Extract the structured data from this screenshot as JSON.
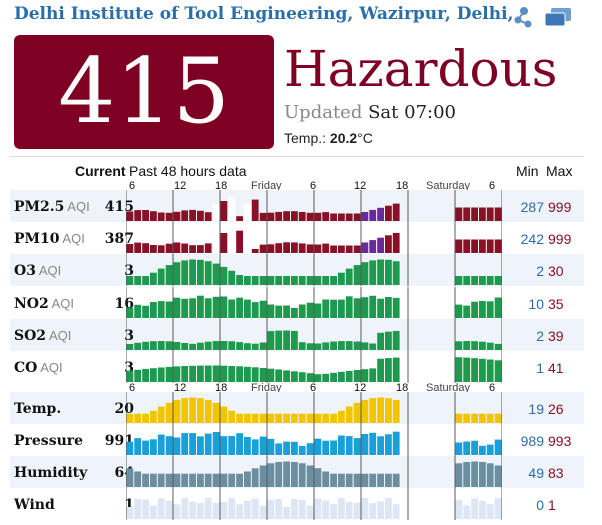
{
  "header": {
    "station": "Delhi Institute of Tool Engineering, Wazirpur, Delhi,",
    "share_icon": "share-icon",
    "window_icon": "windows-icon"
  },
  "aqi": {
    "value": "415",
    "status": "Hazardous",
    "updated_label": "Updated",
    "updated_time": "Sat 07:00",
    "temp_label": "Temp.:",
    "temp_value": "20.2",
    "temp_unit": "°C",
    "color": "#7e0023"
  },
  "table": {
    "current_label": "Current",
    "history_label": "Past 48 hours data",
    "min_label": "Min",
    "max_label": "Max",
    "axis_hours": [
      "6",
      "12",
      "18",
      "Friday",
      "6",
      "12",
      "18",
      "Saturday",
      "6"
    ],
    "rows": [
      {
        "name": "PM2.5",
        "sub": "AQI",
        "current": "415",
        "min": "287",
        "max": "999",
        "color": "#8a1028",
        "kind": "pm25"
      },
      {
        "name": "PM10",
        "sub": "AQI",
        "current": "387",
        "min": "242",
        "max": "999",
        "color": "#8a1028",
        "kind": "pm10"
      },
      {
        "name": "O3",
        "sub": "AQI",
        "current": "3",
        "min": "2",
        "max": "30",
        "color": "#1e9a4e",
        "kind": "o3"
      },
      {
        "name": "NO2",
        "sub": "AQI",
        "current": "16",
        "min": "10",
        "max": "35",
        "color": "#1e9a4e",
        "kind": "no2"
      },
      {
        "name": "SO2",
        "sub": "AQI",
        "current": "3",
        "min": "2",
        "max": "39",
        "color": "#1e9a4e",
        "kind": "so2"
      },
      {
        "name": "CO",
        "sub": "AQI",
        "current": "3",
        "min": "1",
        "max": "41",
        "color": "#1e9a4e",
        "kind": "co"
      },
      {
        "name": "Temp.",
        "sub": "",
        "current": "20",
        "min": "19",
        "max": "26",
        "color": "#f2c500",
        "kind": "temp"
      },
      {
        "name": "Pressure",
        "sub": "",
        "current": "991",
        "min": "989",
        "max": "993",
        "color": "#1aa0d8",
        "kind": "pressure"
      },
      {
        "name": "Humidity",
        "sub": "",
        "current": "64",
        "min": "49",
        "max": "83",
        "color": "#6b8ea0",
        "kind": "humidity"
      },
      {
        "name": "Wind",
        "sub": "",
        "current": "1",
        "min": "0",
        "max": "1",
        "color": "#dde6f5",
        "kind": "wind"
      }
    ]
  }
}
